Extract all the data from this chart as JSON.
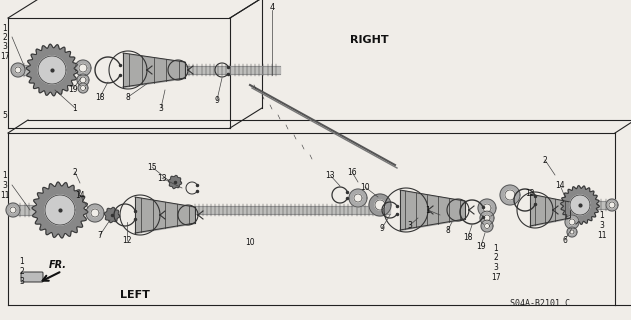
{
  "background_color": "#f0ede8",
  "fig_width": 6.31,
  "fig_height": 3.2,
  "dpi": 100,
  "right_label": "RIGHT",
  "left_label": "LEFT",
  "fr_label": "FR.",
  "part_code": "S04A-B2101 C",
  "font_size_labels": 8,
  "font_size_part_nums": 5.5,
  "font_size_code": 6,
  "line_color": "#222222",
  "part_color": "#333333",
  "fill_light": "#bbbbbb",
  "fill_dark": "#666666"
}
